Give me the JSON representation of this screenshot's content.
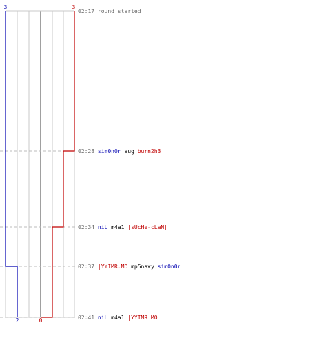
{
  "round": {
    "start_label": "round started",
    "teams": [
      {
        "side": "left",
        "color": "#0000b0",
        "start_count": "3",
        "end_count": "2"
      },
      {
        "side": "right",
        "color": "#c00000",
        "start_count": "3",
        "end_count": "0"
      }
    ]
  },
  "colors": {
    "time": "#666666",
    "weapon": "#000000",
    "grid": "#c8c8c8",
    "center_line": "#888888",
    "dash": "#bbbbbb",
    "blue": "#0000b0",
    "red": "#c00000"
  },
  "events": [
    {
      "time": "02:17",
      "type": "start",
      "text": "round started"
    },
    {
      "time": "02:28",
      "type": "kill",
      "killer": "sim0n0r",
      "killer_team": "blue",
      "weapon": "aug",
      "victim": "burn2h3",
      "victim_team": "red"
    },
    {
      "time": "02:34",
      "type": "kill",
      "killer": "niL",
      "killer_team": "blue",
      "weapon": "m4a1",
      "victim": "|sUcHe-cLaN|",
      "victim_team": "red"
    },
    {
      "time": "02:37",
      "type": "kill",
      "killer": "|YYIMR.MO",
      "killer_team": "red",
      "weapon": "mp5navy",
      "victim": "sim0n0r",
      "victim_team": "blue"
    },
    {
      "time": "02:41",
      "type": "kill",
      "killer": "niL",
      "killer_team": "blue",
      "weapon": "m4a1",
      "victim": "|YYIMR.MO",
      "victim_team": "red"
    }
  ]
}
